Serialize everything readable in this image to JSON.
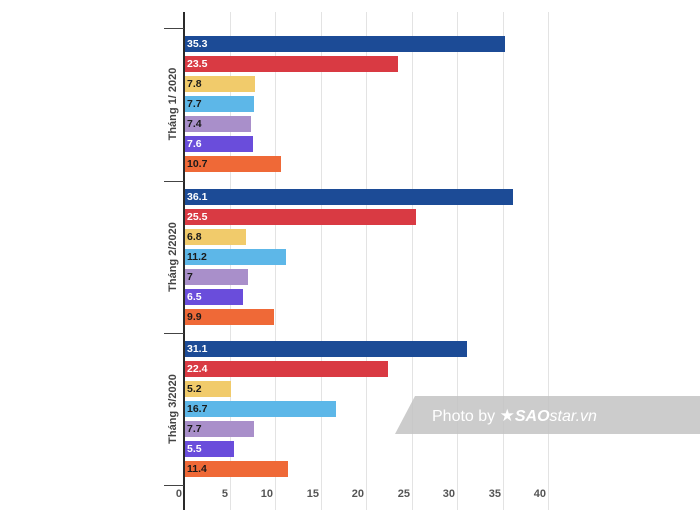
{
  "chart_data": {
    "type": "bar",
    "orientation": "horizontal",
    "title": "",
    "xlabel": "",
    "ylabel": "",
    "xlim": [
      0,
      40
    ],
    "x_ticks": [
      "0",
      "5",
      "10",
      "15",
      "20",
      "25",
      "30",
      "35",
      "40"
    ],
    "grid": true,
    "legend": null,
    "categories": [
      "Tháng 1/ 2020",
      "Tháng 2/2020",
      "Tháng 3/2020"
    ],
    "series": [
      {
        "name": "series-1",
        "color": "#1c4b96",
        "label_color": "#ffffff",
        "values": [
          35.3,
          36.1,
          31.1
        ]
      },
      {
        "name": "series-2",
        "color": "#d93a43",
        "label_color": "#ffffff",
        "values": [
          23.5,
          25.5,
          22.4
        ]
      },
      {
        "name": "series-3",
        "color": "#f1cb6b",
        "label_color": "#1a1a1a",
        "values": [
          7.8,
          6.8,
          5.2
        ]
      },
      {
        "name": "series-4",
        "color": "#5db7e8",
        "label_color": "#1a1a1a",
        "values": [
          7.7,
          11.2,
          16.7
        ]
      },
      {
        "name": "series-5",
        "color": "#a98fca",
        "label_color": "#1a1a1a",
        "values": [
          7.4,
          7,
          7.7
        ]
      },
      {
        "name": "series-6",
        "color": "#6a4ddb",
        "label_color": "#ffffff",
        "values": [
          7.6,
          6.5,
          5.5
        ]
      },
      {
        "name": "series-7",
        "color": "#ef6937",
        "label_color": "#1a1a1a",
        "values": [
          10.7,
          9.9,
          11.4
        ]
      }
    ],
    "data_labels": [
      [
        "35.3",
        "23.5",
        "7.8",
        "7.7",
        "7.4",
        "7.6",
        "10.7"
      ],
      [
        "36.1",
        "25.5",
        "6.8",
        "11.2",
        "7",
        "6.5",
        "9.9"
      ],
      [
        "31.1",
        "22.4",
        "5.2",
        "16.7",
        "7.7",
        "5.5",
        "11.4"
      ]
    ]
  },
  "watermark": {
    "prefix": "Photo by ",
    "star": "★",
    "brand": "SAO",
    "suffix": "star.vn"
  }
}
